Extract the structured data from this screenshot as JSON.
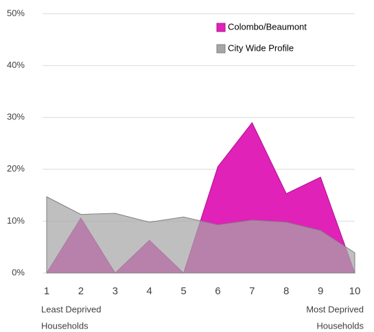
{
  "chart_data": {
    "type": "area",
    "x": [
      1,
      2,
      3,
      4,
      5,
      6,
      7,
      8,
      9,
      10
    ],
    "series": [
      {
        "name": "Colombo/Beaumont",
        "color": "#e022b8",
        "values": [
          0,
          10.6,
          0,
          6.3,
          0,
          20.5,
          29,
          15.3,
          18.5,
          0
        ]
      },
      {
        "name": "City Wide Profile",
        "color": "#a6a6a6",
        "values": [
          14.7,
          11.3,
          11.5,
          9.8,
          10.8,
          9.3,
          10.2,
          9.8,
          8.2,
          3.9
        ]
      }
    ],
    "xlim": [
      1,
      10
    ],
    "xticks": [
      1,
      2,
      3,
      4,
      5,
      6,
      7,
      8,
      9,
      10
    ],
    "ylim": [
      0,
      50
    ],
    "yticks": [
      {
        "value": 0,
        "label": "0%"
      },
      {
        "value": 10,
        "label": "10%"
      },
      {
        "value": 20,
        "label": "20%"
      },
      {
        "value": 30,
        "label": "30%"
      },
      {
        "value": 40,
        "label": "40%"
      },
      {
        "value": 50,
        "label": "50%"
      }
    ],
    "grid": true,
    "legend": "top-right",
    "annotations": [
      {
        "lines": [
          "Least Deprived",
          "Households"
        ]
      },
      {
        "lines": [
          "Most Deprived",
          "Households"
        ]
      }
    ]
  }
}
